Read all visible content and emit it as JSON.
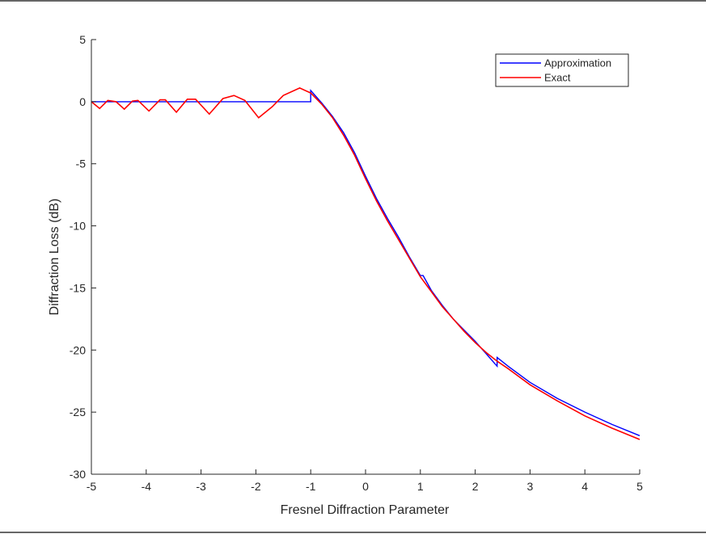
{
  "chart_data": {
    "type": "line",
    "title": "",
    "xlabel": "Fresnel Diffraction Parameter",
    "ylabel": "Diffraction Loss (dB)",
    "xlim": [
      -5,
      5
    ],
    "ylim": [
      -30,
      5
    ],
    "xticks": [
      -5,
      -4,
      -3,
      -2,
      -1,
      0,
      1,
      2,
      3,
      4,
      5
    ],
    "yticks": [
      -30,
      -25,
      -20,
      -15,
      -10,
      -5,
      0,
      5
    ],
    "grid": false,
    "legend_position": "top-right",
    "series": [
      {
        "name": "Approximation",
        "color": "#0000ff",
        "points": [
          [
            -5,
            0
          ],
          [
            -1,
            0
          ],
          [
            -1,
            0.9
          ],
          [
            -0.8,
            -0.1
          ],
          [
            -0.6,
            -1.2
          ],
          [
            -0.4,
            -2.5
          ],
          [
            -0.2,
            -4.1
          ],
          [
            0,
            -6.0
          ],
          [
            0.2,
            -7.8
          ],
          [
            0.4,
            -9.4
          ],
          [
            0.6,
            -10.9
          ],
          [
            0.8,
            -12.5
          ],
          [
            1.0,
            -14.0
          ],
          [
            1.05,
            -14.0
          ],
          [
            1.2,
            -15.2
          ],
          [
            1.4,
            -16.4
          ],
          [
            1.6,
            -17.5
          ],
          [
            1.8,
            -18.4
          ],
          [
            2.0,
            -19.3
          ],
          [
            2.2,
            -20.3
          ],
          [
            2.4,
            -21.3
          ],
          [
            2.4,
            -20.6
          ],
          [
            2.6,
            -21.3
          ],
          [
            3.0,
            -22.6
          ],
          [
            3.5,
            -23.9
          ],
          [
            4.0,
            -25.0
          ],
          [
            4.5,
            -26.0
          ],
          [
            5.0,
            -26.9
          ]
        ]
      },
      {
        "name": "Exact",
        "color": "#ff0000",
        "points": [
          [
            -5,
            0.0
          ],
          [
            -4.85,
            -0.55
          ],
          [
            -4.7,
            0.1
          ],
          [
            -4.55,
            0.0
          ],
          [
            -4.4,
            -0.6
          ],
          [
            -4.25,
            0.05
          ],
          [
            -4.15,
            0.1
          ],
          [
            -3.95,
            -0.75
          ],
          [
            -3.75,
            0.15
          ],
          [
            -3.65,
            0.15
          ],
          [
            -3.45,
            -0.85
          ],
          [
            -3.25,
            0.2
          ],
          [
            -3.1,
            0.2
          ],
          [
            -2.85,
            -1.0
          ],
          [
            -2.6,
            0.25
          ],
          [
            -2.4,
            0.5
          ],
          [
            -2.2,
            0.1
          ],
          [
            -1.95,
            -1.3
          ],
          [
            -1.7,
            -0.4
          ],
          [
            -1.5,
            0.5
          ],
          [
            -1.2,
            1.1
          ],
          [
            -1.0,
            0.7
          ],
          [
            -0.8,
            -0.2
          ],
          [
            -0.6,
            -1.3
          ],
          [
            -0.4,
            -2.7
          ],
          [
            -0.2,
            -4.3
          ],
          [
            0,
            -6.2
          ],
          [
            0.2,
            -8.0
          ],
          [
            0.4,
            -9.6
          ],
          [
            0.6,
            -11.1
          ],
          [
            0.8,
            -12.6
          ],
          [
            1.0,
            -14.1
          ],
          [
            1.2,
            -15.3
          ],
          [
            1.4,
            -16.5
          ],
          [
            1.6,
            -17.5
          ],
          [
            1.8,
            -18.5
          ],
          [
            2.0,
            -19.4
          ],
          [
            2.2,
            -20.2
          ],
          [
            2.4,
            -20.9
          ],
          [
            2.6,
            -21.5
          ],
          [
            3.0,
            -22.8
          ],
          [
            3.5,
            -24.1
          ],
          [
            4.0,
            -25.3
          ],
          [
            4.5,
            -26.3
          ],
          [
            5.0,
            -27.2
          ]
        ]
      }
    ]
  }
}
